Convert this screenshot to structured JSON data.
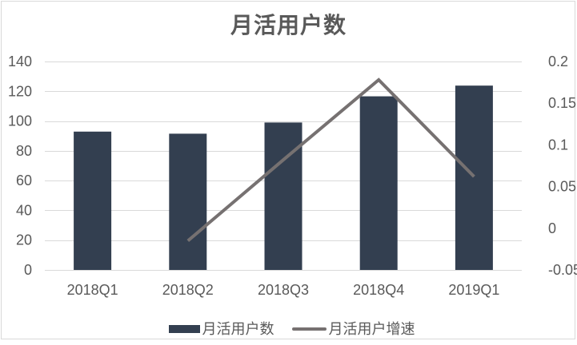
{
  "title": "月活用户数",
  "legend": {
    "items": [
      {
        "label": "月活用户数",
        "swatch": "bar"
      },
      {
        "label": "月活用户增速",
        "swatch": "line"
      }
    ]
  },
  "colors": {
    "bar": "#333F50",
    "line": "#767171",
    "grid": "#D9D9D9",
    "axis_text": "#595959",
    "title_text": "#595959",
    "card_border": "#D9D9D9",
    "background": "#FFFFFF"
  },
  "chart_data": {
    "type": "bar",
    "subtype": "combo-bar-line-dual-axis",
    "title": "月活用户数",
    "categories": [
      "2018Q1",
      "2018Q2",
      "2018Q3",
      "2018Q4",
      "2019Q1"
    ],
    "series": [
      {
        "name": "月活用户数",
        "type": "bar",
        "axis": "left",
        "values": [
          92.9,
          91.5,
          99.0,
          116.6,
          123.8
        ]
      },
      {
        "name": "月活用户增速",
        "type": "line",
        "axis": "right",
        "values": [
          null,
          -0.015,
          0.082,
          0.178,
          0.062
        ]
      }
    ],
    "left_axis": {
      "min": 0,
      "max": 140,
      "step": 20,
      "ticks": [
        "0",
        "20",
        "40",
        "60",
        "80",
        "100",
        "120",
        "140"
      ]
    },
    "right_axis": {
      "min": -0.05,
      "max": 0.2,
      "step": 0.05,
      "ticks": [
        "-0.05",
        "0",
        "0.05",
        "0.1",
        "0.15",
        "0.2"
      ]
    },
    "grid": true,
    "legend_position": "bottom",
    "xlabel": "",
    "ylabel": ""
  }
}
